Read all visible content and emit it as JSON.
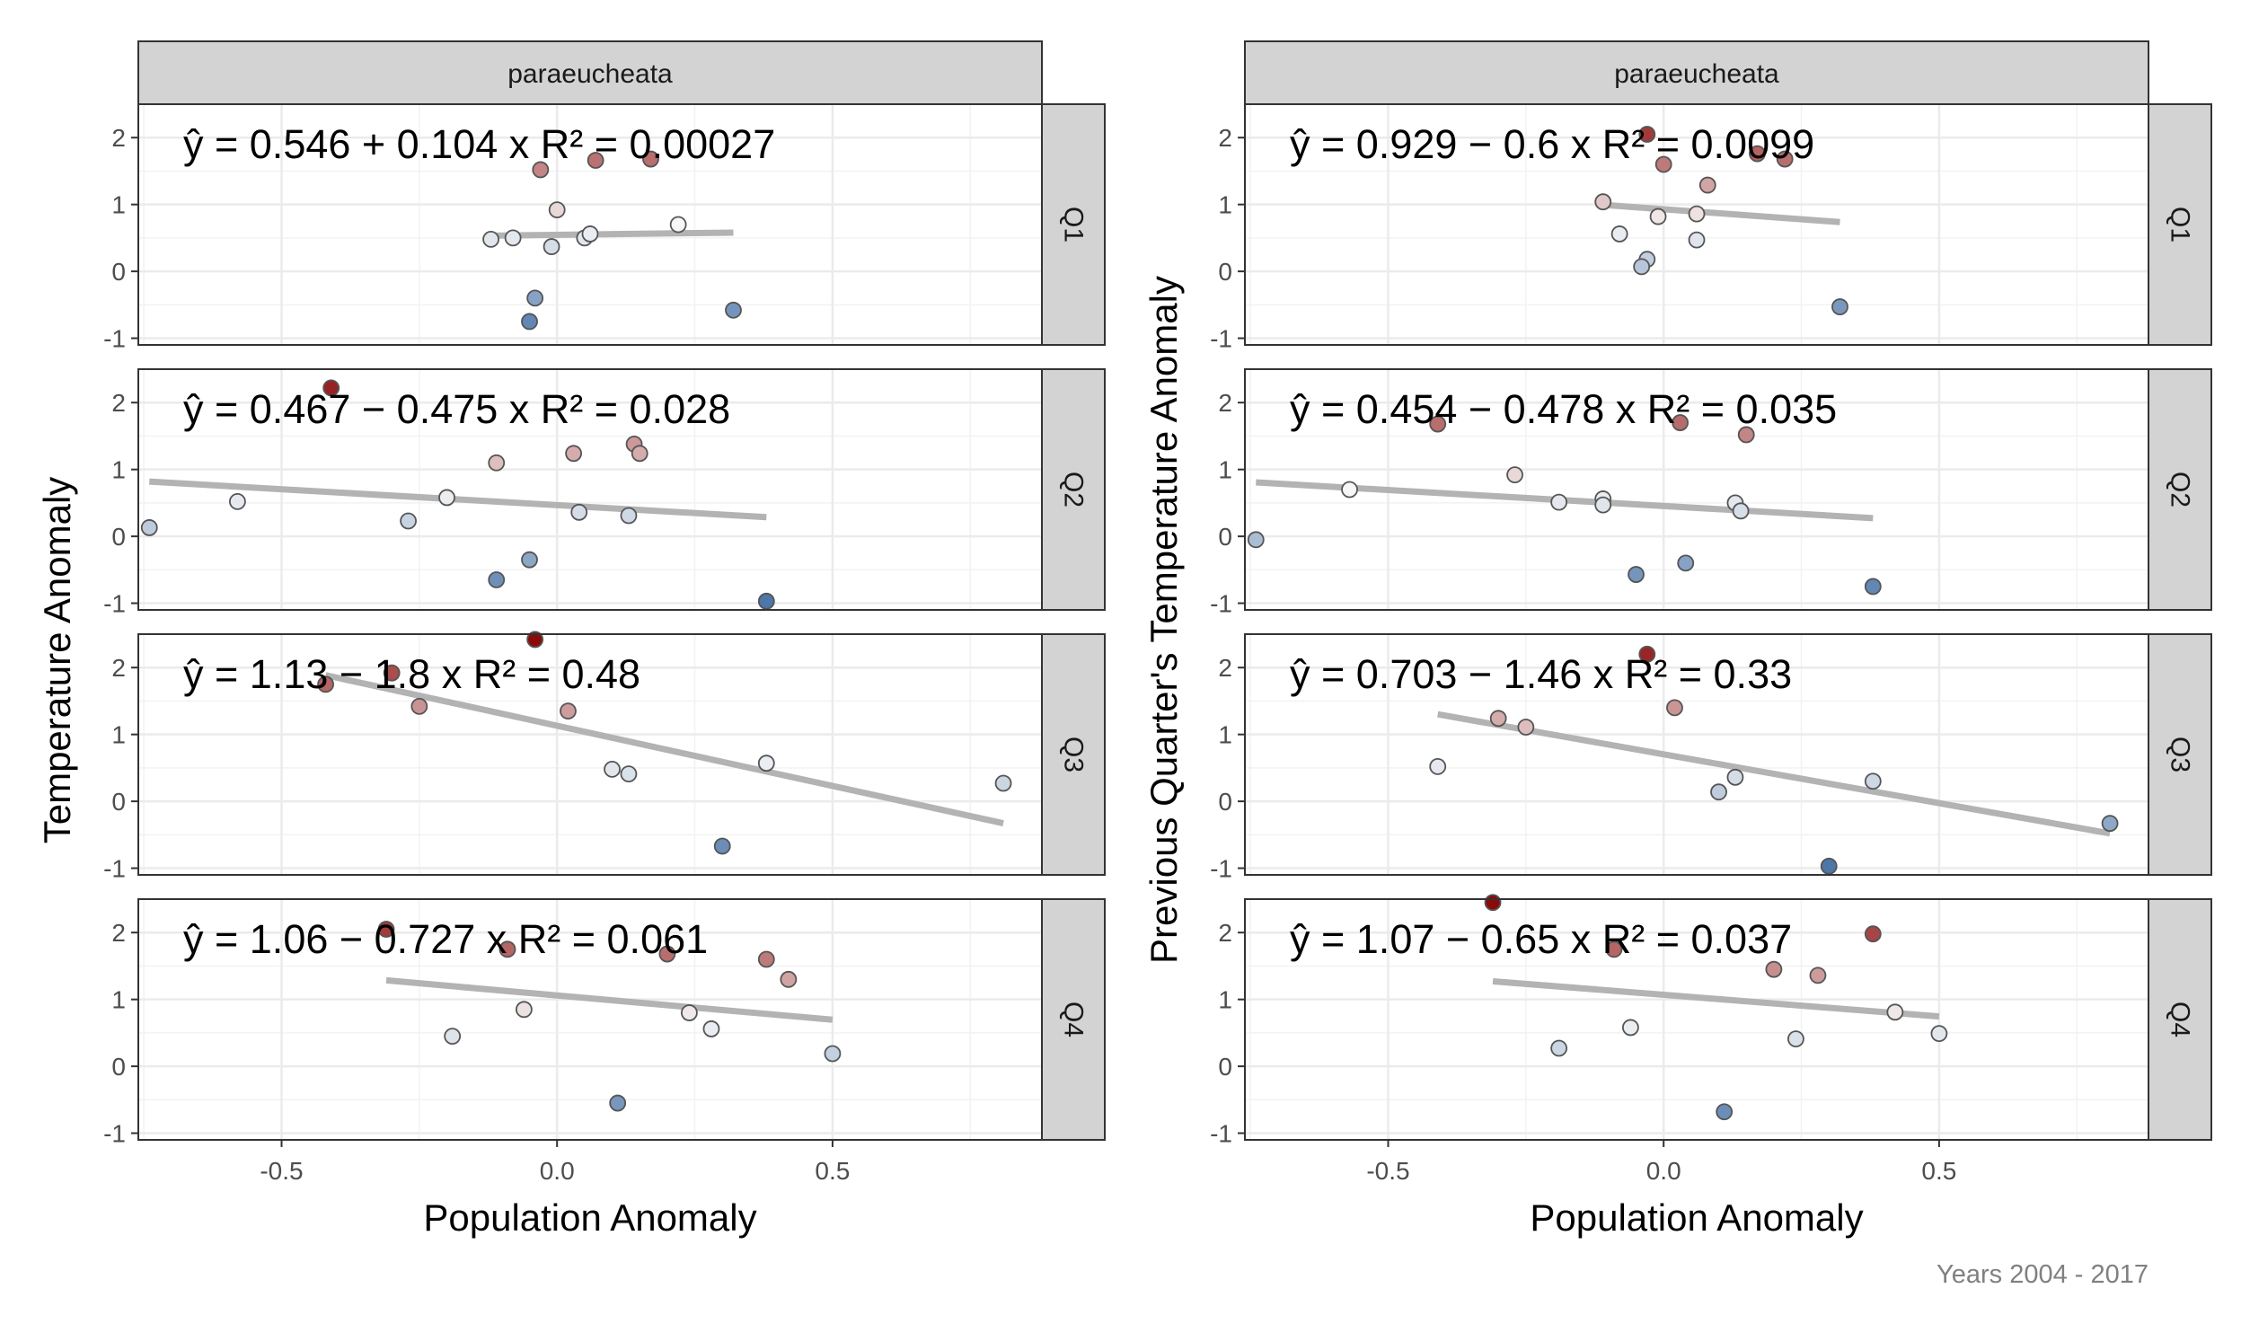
{
  "caption": "Years 2004 - 2017",
  "chart_data": [
    {
      "type": "scatter",
      "facet_title": "paraeucheata",
      "xlabel": "Population Anomaly",
      "ylabel": "Temperature Anomaly",
      "xlim": [
        -0.76,
        0.88
      ],
      "ylim": [
        -1.1,
        2.5
      ],
      "x_ticks": [
        "-0.5",
        "0.0",
        "0.5"
      ],
      "x_tick_values": [
        -0.5,
        0,
        0.5
      ],
      "y_ticks": [
        "-1",
        "0",
        "1",
        "2"
      ],
      "y_tick_values": [
        -1,
        0,
        1,
        2
      ],
      "grid": true,
      "color_scale": {
        "low": "#4a74a8",
        "mid": "#f7f7f7",
        "high": "#8b0a0a",
        "range": [
          -1,
          2.4
        ]
      },
      "panels": [
        {
          "label": "Q1",
          "equation": "ŷ = 0.546 + 0.104 x   R² = 0.00027",
          "fit": {
            "intercept": 0.546,
            "slope": 0.104,
            "x_range": [
              -0.12,
              0.32
            ]
          },
          "points": [
            [
              -0.03,
              1.52
            ],
            [
              0.07,
              1.66
            ],
            [
              0.17,
              1.68
            ],
            [
              0,
              0.92
            ],
            [
              -0.12,
              0.48
            ],
            [
              -0.08,
              0.5
            ],
            [
              -0.01,
              0.37
            ],
            [
              0.05,
              0.5
            ],
            [
              0.06,
              0.56
            ],
            [
              0.22,
              0.7
            ],
            [
              -0.04,
              -0.4
            ],
            [
              -0.05,
              -0.75
            ],
            [
              0.32,
              -0.58
            ]
          ]
        },
        {
          "label": "Q2",
          "equation": "ŷ = 0.467 − 0.475 x   R² = 0.028",
          "fit": {
            "intercept": 0.467,
            "slope": -0.475,
            "x_range": [
              -0.74,
              0.38
            ]
          },
          "points": [
            [
              -0.41,
              2.22
            ],
            [
              -0.11,
              1.1
            ],
            [
              0.03,
              1.24
            ],
            [
              0.14,
              1.38
            ],
            [
              0.15,
              1.24
            ],
            [
              -0.2,
              0.58
            ],
            [
              0.04,
              0.36
            ],
            [
              0.13,
              0.31
            ],
            [
              -0.58,
              0.52
            ],
            [
              -0.27,
              0.23
            ],
            [
              -0.74,
              0.13
            ],
            [
              -0.05,
              -0.35
            ],
            [
              -0.11,
              -0.65
            ],
            [
              0.38,
              -0.97
            ]
          ]
        },
        {
          "label": "Q3",
          "equation": "ŷ = 1.13 − 1.8 x   R² = 0.48",
          "fit": {
            "intercept": 1.13,
            "slope": -1.8,
            "x_range": [
              -0.42,
              0.81
            ]
          },
          "points": [
            [
              -0.04,
              2.42
            ],
            [
              -0.3,
              1.92
            ],
            [
              -0.42,
              1.75
            ],
            [
              -0.25,
              1.42
            ],
            [
              0.02,
              1.35
            ],
            [
              0.1,
              0.48
            ],
            [
              0.13,
              0.41
            ],
            [
              0.38,
              0.57
            ],
            [
              0.81,
              0.27
            ],
            [
              0.3,
              -0.67
            ]
          ]
        },
        {
          "label": "Q4",
          "equation": "ŷ = 1.06 − 0.727 x   R² = 0.061",
          "fit": {
            "intercept": 1.06,
            "slope": -0.727,
            "x_range": [
              -0.31,
              0.5
            ]
          },
          "points": [
            [
              -0.31,
              2.05
            ],
            [
              -0.09,
              1.75
            ],
            [
              0.2,
              1.68
            ],
            [
              0.38,
              1.6
            ],
            [
              0.42,
              1.3
            ],
            [
              -0.06,
              0.85
            ],
            [
              0.24,
              0.8
            ],
            [
              0.28,
              0.56
            ],
            [
              -0.19,
              0.45
            ],
            [
              0.5,
              0.19
            ],
            [
              0.11,
              -0.55
            ]
          ]
        }
      ]
    },
    {
      "type": "scatter",
      "facet_title": "paraeucheata",
      "xlabel": "Population Anomaly",
      "ylabel": "Previous Quarter's Temperature Anomaly",
      "xlim": [
        -0.76,
        0.88
      ],
      "ylim": [
        -1.1,
        2.5
      ],
      "x_ticks": [
        "-0.5",
        "0.0",
        "0.5"
      ],
      "x_tick_values": [
        -0.5,
        0,
        0.5
      ],
      "y_ticks": [
        "-1",
        "0",
        "1",
        "2"
      ],
      "y_tick_values": [
        -1,
        0,
        1,
        2
      ],
      "grid": true,
      "color_scale": {
        "low": "#4a74a8",
        "mid": "#f7f7f7",
        "high": "#8b0a0a",
        "range": [
          -1,
          2.4
        ]
      },
      "panels": [
        {
          "label": "Q1",
          "equation": "ŷ = 0.929 − 0.6 x   R² = 0.0099",
          "fit": {
            "intercept": 0.929,
            "slope": -0.6,
            "x_range": [
              -0.12,
              0.32
            ]
          },
          "points": [
            [
              -0.03,
              2.05
            ],
            [
              0,
              1.6
            ],
            [
              0.17,
              1.76
            ],
            [
              0.22,
              1.68
            ],
            [
              0.08,
              1.29
            ],
            [
              -0.11,
              1.04
            ],
            [
              -0.08,
              0.56
            ],
            [
              -0.01,
              0.82
            ],
            [
              0.06,
              0.86
            ],
            [
              0.06,
              0.47
            ],
            [
              -0.03,
              0.18
            ],
            [
              -0.04,
              0.07
            ],
            [
              0.32,
              -0.53
            ]
          ]
        },
        {
          "label": "Q2",
          "equation": "ŷ = 0.454 − 0.478 x   R² = 0.035",
          "fit": {
            "intercept": 0.454,
            "slope": -0.478,
            "x_range": [
              -0.74,
              0.38
            ]
          },
          "points": [
            [
              -0.41,
              1.68
            ],
            [
              0.03,
              1.7
            ],
            [
              0.15,
              1.52
            ],
            [
              -0.27,
              0.92
            ],
            [
              -0.57,
              0.7
            ],
            [
              -0.11,
              0.56
            ],
            [
              -0.19,
              0.51
            ],
            [
              -0.11,
              0.47
            ],
            [
              0.13,
              0.5
            ],
            [
              0.14,
              0.38
            ],
            [
              -0.74,
              -0.05
            ],
            [
              -0.05,
              -0.57
            ],
            [
              0.04,
              -0.4
            ],
            [
              0.38,
              -0.75
            ]
          ]
        },
        {
          "label": "Q3",
          "equation": "ŷ = 0.703 − 1.46 x   R² = 0.33",
          "fit": {
            "intercept": 0.703,
            "slope": -1.46,
            "x_range": [
              -0.41,
              0.81
            ]
          },
          "points": [
            [
              -0.03,
              2.2
            ],
            [
              0.02,
              1.4
            ],
            [
              -0.3,
              1.24
            ],
            [
              -0.25,
              1.11
            ],
            [
              -0.41,
              0.52
            ],
            [
              0.13,
              0.36
            ],
            [
              0.1,
              0.14
            ],
            [
              0.38,
              0.3
            ],
            [
              0.81,
              -0.33
            ],
            [
              0.3,
              -0.97
            ]
          ]
        },
        {
          "label": "Q4",
          "equation": "ŷ = 1.07 − 0.65 x   R² = 0.037",
          "fit": {
            "intercept": 1.07,
            "slope": -0.65,
            "x_range": [
              -0.31,
              0.5
            ]
          },
          "points": [
            [
              -0.31,
              2.45
            ],
            [
              0.38,
              1.98
            ],
            [
              -0.09,
              1.75
            ],
            [
              0.2,
              1.45
            ],
            [
              0.28,
              1.36
            ],
            [
              0.42,
              0.81
            ],
            [
              -0.06,
              0.58
            ],
            [
              0.5,
              0.49
            ],
            [
              0.24,
              0.41
            ],
            [
              -0.19,
              0.27
            ],
            [
              0.11,
              -0.68
            ]
          ]
        }
      ]
    }
  ]
}
